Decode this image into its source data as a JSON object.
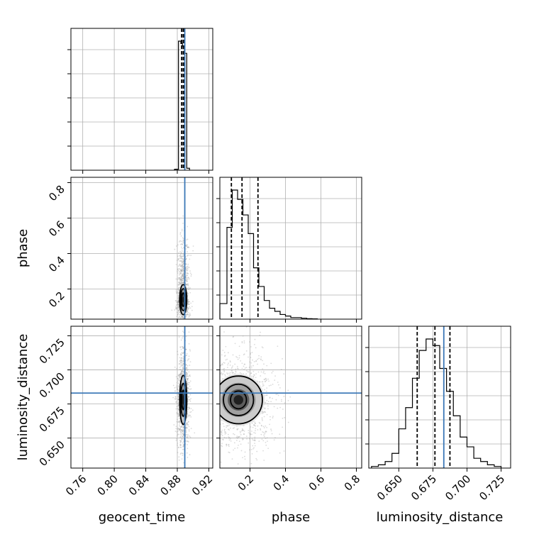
{
  "chart_data": {
    "type": "corner",
    "parameters": [
      "geocent_time",
      "phase",
      "luminosity_distance"
    ],
    "axes": {
      "geocent_time": {
        "range": [
          0.745,
          0.925
        ],
        "ticks": [
          0.76,
          0.8,
          0.84,
          0.88,
          0.92
        ],
        "tick_labels": [
          "0.76",
          "0.80",
          "0.84",
          "0.88",
          "0.92"
        ]
      },
      "phase": {
        "range": [
          0.03,
          0.83
        ],
        "ticks": [
          0.2,
          0.4,
          0.6,
          0.8
        ],
        "tick_labels": [
          "0.2",
          "0.4",
          "0.6",
          "0.8"
        ]
      },
      "luminosity_distance": {
        "range": [
          0.628,
          0.732
        ],
        "ticks": [
          0.65,
          0.675,
          0.7,
          0.725
        ],
        "tick_labels": [
          "0.650",
          "0.675",
          "0.700",
          "0.725"
        ]
      }
    },
    "truths": {
      "geocent_time": 0.8895,
      "luminosity_distance": 0.683
    },
    "quantiles": {
      "geocent_time": [
        0.8855,
        0.8875,
        0.889
      ],
      "phase": [
        0.095,
        0.155,
        0.245
      ],
      "luminosity_distance": [
        0.6635,
        0.6765,
        0.6875
      ]
    },
    "histograms": {
      "geocent_time": {
        "edges": [
          0.8765,
          0.8815,
          0.8845,
          0.8865,
          0.889,
          0.892,
          0.8955
        ],
        "counts": [
          0.4,
          53,
          52,
          51,
          48,
          0.8
        ]
      },
      "phase": {
        "edges": [
          0.03,
          0.07,
          0.1,
          0.13,
          0.16,
          0.19,
          0.22,
          0.25,
          0.28,
          0.31,
          0.34,
          0.37,
          0.4,
          0.43,
          0.46,
          0.49,
          0.52,
          0.55,
          0.58
        ],
        "counts": [
          10,
          59,
          83,
          77,
          67,
          55,
          33,
          21,
          12,
          7,
          5,
          3,
          2,
          1,
          1,
          0.6,
          0.3,
          0.2
        ]
      },
      "luminosity_distance": {
        "edges": [
          0.63,
          0.635,
          0.64,
          0.645,
          0.65,
          0.655,
          0.66,
          0.665,
          0.67,
          0.675,
          0.68,
          0.685,
          0.69,
          0.695,
          0.7,
          0.705,
          0.71,
          0.715,
          0.72,
          0.725
        ],
        "counts": [
          1,
          2,
          4,
          9,
          24,
          37,
          55,
          72,
          79,
          75,
          61,
          47,
          32,
          19,
          13,
          6,
          4,
          2,
          1
        ]
      }
    },
    "density_2d": [
      {
        "x": "geocent_time",
        "y": "phase",
        "center": [
          0.8875,
          0.14
        ],
        "spread": [
          0.0035,
          0.09
        ],
        "contour_levels": [
          {
            "rx": 0.0018,
            "ry": 0.038
          },
          {
            "rx": 0.0032,
            "ry": 0.062
          },
          {
            "rx": 0.0045,
            "ry": 0.085
          }
        ]
      },
      {
        "x": "geocent_time",
        "y": "luminosity_distance",
        "center": [
          0.8875,
          0.678
        ],
        "spread": [
          0.0035,
          0.018
        ],
        "contour_levels": [
          {
            "rx": 0.0018,
            "ry": 0.007
          },
          {
            "rx": 0.0032,
            "ry": 0.012
          },
          {
            "rx": 0.0045,
            "ry": 0.018
          }
        ]
      },
      {
        "x": "phase",
        "y": "luminosity_distance",
        "center": [
          0.135,
          0.678
        ],
        "spread": [
          0.11,
          0.018
        ],
        "contour_levels": [
          {
            "rx": 0.045,
            "ry": 0.0065
          },
          {
            "rx": 0.085,
            "ry": 0.0115
          },
          {
            "rx": 0.135,
            "ry": 0.0175
          }
        ]
      }
    ],
    "grid": true
  }
}
